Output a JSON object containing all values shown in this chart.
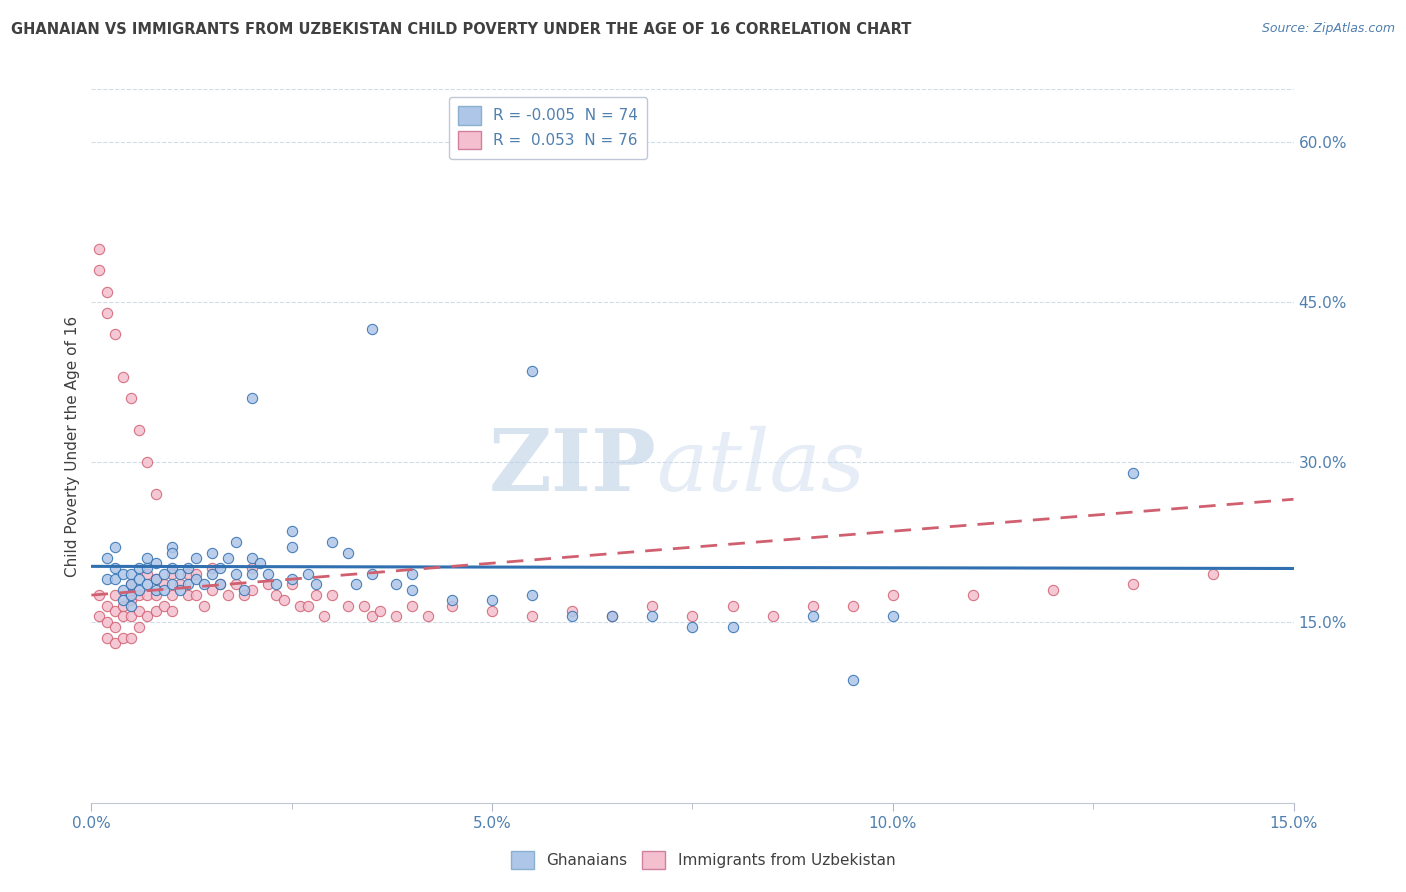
{
  "title": "GHANAIAN VS IMMIGRANTS FROM UZBEKISTAN CHILD POVERTY UNDER THE AGE OF 16 CORRELATION CHART",
  "source": "Source: ZipAtlas.com",
  "ylabel": "Child Poverty Under the Age of 16",
  "xlim": [
    0.0,
    0.15
  ],
  "ylim": [
    -0.02,
    0.65
  ],
  "xticks": [
    0.0,
    0.05,
    0.1,
    0.15
  ],
  "xtick_labels": [
    "0.0%",
    "5.0%",
    "10.0%",
    "15.0%"
  ],
  "yticks_right": [
    0.15,
    0.3,
    0.45,
    0.6
  ],
  "ytick_labels_right": [
    "15.0%",
    "30.0%",
    "45.0%",
    "60.0%"
  ],
  "legend_blue_label": "R = -0.005  N = 74",
  "legend_pink_label": "R =  0.053  N = 76",
  "series1_label": "Ghanaians",
  "series2_label": "Immigrants from Uzbekistan",
  "blue_color": "#aec6e8",
  "pink_color": "#f4bfce",
  "blue_line_color": "#3070b0",
  "pink_line_color": "#d06070",
  "R1": -0.005,
  "N1": 74,
  "R2": 0.053,
  "N2": 76,
  "watermark_zip": "ZIP",
  "watermark_atlas": "atlas",
  "background_color": "#ffffff",
  "title_color": "#404040",
  "axis_color": "#5080b0",
  "grid_color": "#d0dcea",
  "blue_x": [
    0.002,
    0.002,
    0.003,
    0.003,
    0.003,
    0.004,
    0.004,
    0.004,
    0.005,
    0.005,
    0.005,
    0.005,
    0.006,
    0.006,
    0.006,
    0.007,
    0.007,
    0.007,
    0.008,
    0.008,
    0.008,
    0.009,
    0.009,
    0.01,
    0.01,
    0.01,
    0.01,
    0.011,
    0.011,
    0.012,
    0.012,
    0.013,
    0.013,
    0.014,
    0.015,
    0.015,
    0.016,
    0.016,
    0.017,
    0.018,
    0.018,
    0.019,
    0.02,
    0.02,
    0.021,
    0.022,
    0.023,
    0.025,
    0.025,
    0.025,
    0.027,
    0.028,
    0.03,
    0.032,
    0.033,
    0.035,
    0.038,
    0.04,
    0.04,
    0.045,
    0.05,
    0.055,
    0.06,
    0.065,
    0.07,
    0.075,
    0.08,
    0.09,
    0.095,
    0.1,
    0.02,
    0.035,
    0.055,
    0.13
  ],
  "blue_y": [
    0.21,
    0.19,
    0.22,
    0.2,
    0.19,
    0.195,
    0.18,
    0.17,
    0.195,
    0.185,
    0.175,
    0.165,
    0.2,
    0.19,
    0.18,
    0.21,
    0.2,
    0.185,
    0.205,
    0.19,
    0.18,
    0.195,
    0.18,
    0.22,
    0.215,
    0.2,
    0.185,
    0.195,
    0.18,
    0.2,
    0.185,
    0.21,
    0.19,
    0.185,
    0.215,
    0.195,
    0.2,
    0.185,
    0.21,
    0.225,
    0.195,
    0.18,
    0.21,
    0.195,
    0.205,
    0.195,
    0.185,
    0.235,
    0.22,
    0.19,
    0.195,
    0.185,
    0.225,
    0.215,
    0.185,
    0.195,
    0.185,
    0.195,
    0.18,
    0.17,
    0.17,
    0.175,
    0.155,
    0.155,
    0.155,
    0.145,
    0.145,
    0.155,
    0.095,
    0.155,
    0.36,
    0.425,
    0.385,
    0.29
  ],
  "pink_x": [
    0.001,
    0.001,
    0.002,
    0.002,
    0.002,
    0.003,
    0.003,
    0.003,
    0.003,
    0.004,
    0.004,
    0.004,
    0.005,
    0.005,
    0.005,
    0.005,
    0.006,
    0.006,
    0.006,
    0.007,
    0.007,
    0.007,
    0.008,
    0.008,
    0.008,
    0.009,
    0.009,
    0.01,
    0.01,
    0.01,
    0.011,
    0.012,
    0.012,
    0.013,
    0.013,
    0.014,
    0.015,
    0.015,
    0.016,
    0.017,
    0.018,
    0.019,
    0.02,
    0.02,
    0.022,
    0.023,
    0.024,
    0.025,
    0.026,
    0.027,
    0.028,
    0.029,
    0.03,
    0.032,
    0.034,
    0.035,
    0.036,
    0.038,
    0.04,
    0.042,
    0.045,
    0.05,
    0.055,
    0.06,
    0.065,
    0.07,
    0.075,
    0.08,
    0.085,
    0.09,
    0.095,
    0.1,
    0.11,
    0.12,
    0.13,
    0.14
  ],
  "pink_y": [
    0.175,
    0.155,
    0.165,
    0.15,
    0.135,
    0.175,
    0.16,
    0.145,
    0.13,
    0.165,
    0.155,
    0.135,
    0.185,
    0.17,
    0.155,
    0.135,
    0.175,
    0.16,
    0.145,
    0.195,
    0.175,
    0.155,
    0.19,
    0.175,
    0.16,
    0.185,
    0.165,
    0.195,
    0.175,
    0.16,
    0.185,
    0.195,
    0.175,
    0.195,
    0.175,
    0.165,
    0.2,
    0.18,
    0.185,
    0.175,
    0.185,
    0.175,
    0.2,
    0.18,
    0.185,
    0.175,
    0.17,
    0.185,
    0.165,
    0.165,
    0.175,
    0.155,
    0.175,
    0.165,
    0.165,
    0.155,
    0.16,
    0.155,
    0.165,
    0.155,
    0.165,
    0.16,
    0.155,
    0.16,
    0.155,
    0.165,
    0.155,
    0.165,
    0.155,
    0.165,
    0.165,
    0.175,
    0.175,
    0.18,
    0.185,
    0.195
  ],
  "pink_outliers_x": [
    0.001,
    0.001,
    0.002,
    0.002,
    0.003,
    0.004,
    0.005,
    0.006,
    0.007,
    0.008
  ],
  "pink_outliers_y": [
    0.5,
    0.48,
    0.46,
    0.44,
    0.42,
    0.38,
    0.36,
    0.33,
    0.3,
    0.27
  ]
}
